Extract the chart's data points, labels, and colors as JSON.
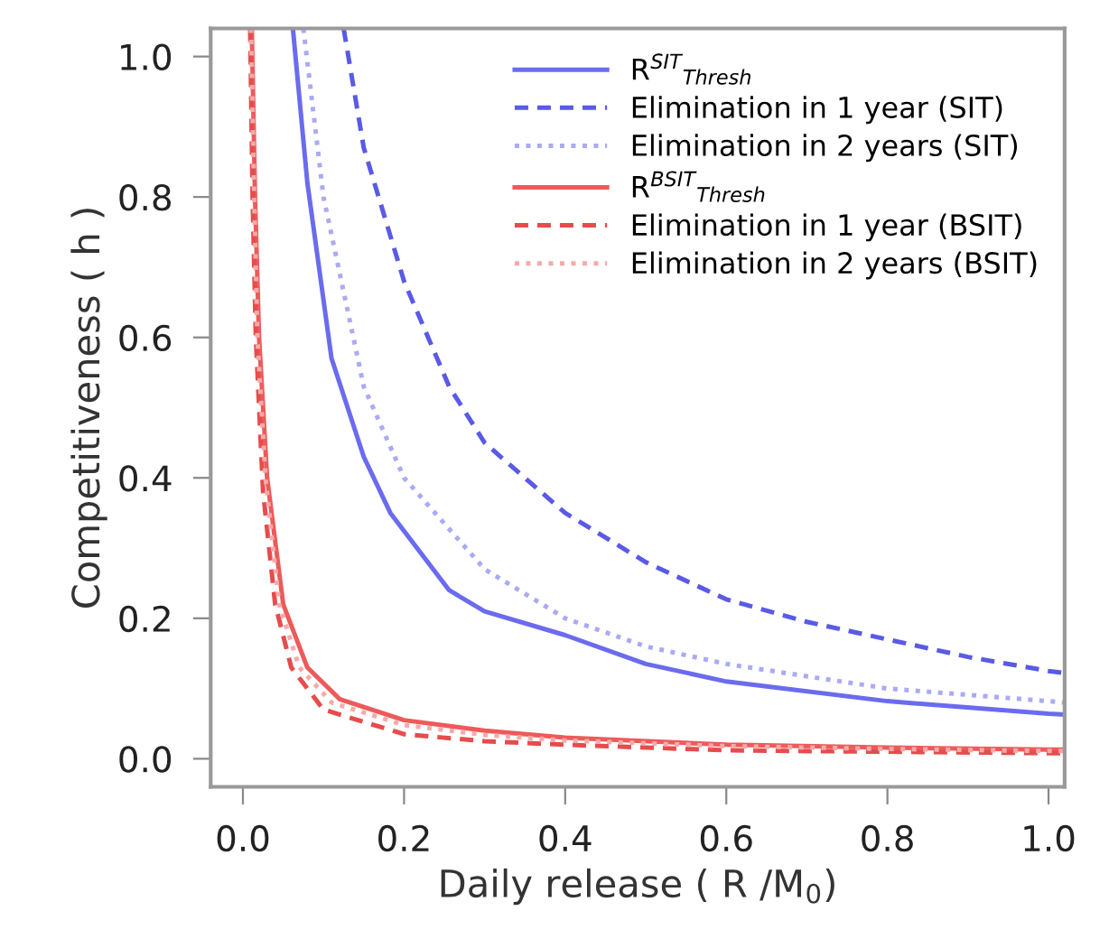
{
  "chart_data": {
    "type": "line",
    "xlabel": "Daily release ( R /M$_{0}$)",
    "ylabel": "Competitiveness ( h )",
    "xlim": [
      -0.04,
      1.02
    ],
    "ylim": [
      -0.04,
      1.04
    ],
    "xticks": [
      {
        "value": 0,
        "label": "0.0"
      },
      {
        "value": 0.2,
        "label": "0.2"
      },
      {
        "value": 0.4,
        "label": "0.4"
      },
      {
        "value": 0.6,
        "label": "0.6"
      },
      {
        "value": 0.8,
        "label": "0.8"
      },
      {
        "value": 1.0,
        "label": "1.0"
      }
    ],
    "yticks": [
      {
        "value": 0,
        "label": "0.0"
      },
      {
        "value": 0.2,
        "label": "0.2"
      },
      {
        "value": 0.4,
        "label": "0.4"
      },
      {
        "value": 0.6,
        "label": "0.6"
      },
      {
        "value": 0.8,
        "label": "0.8"
      },
      {
        "value": 1.0,
        "label": "1.0"
      }
    ],
    "grid": false,
    "legend": "top right",
    "series": [
      {
        "name": "R$^{SIT}$$_{Thresh}$",
        "color": "#6b6bef",
        "line_style": "solid",
        "x": [
          0.062,
          0.08,
          0.11,
          0.15,
          0.183,
          0.256,
          0.3,
          0.4,
          0.5,
          0.6,
          0.8,
          1.0,
          1.02
        ],
        "values": [
          1.04,
          0.82,
          0.57,
          0.43,
          0.35,
          0.24,
          0.21,
          0.176,
          0.135,
          0.11,
          0.082,
          0.064,
          0.063
        ]
      },
      {
        "name": "Elimination in 1 year (SIT)",
        "color": "#5a5ae6",
        "line_style": "dashed",
        "x": [
          0.125,
          0.15,
          0.2,
          0.256,
          0.3,
          0.4,
          0.5,
          0.6,
          0.7,
          0.8,
          0.9,
          1.0,
          1.02
        ],
        "values": [
          1.04,
          0.87,
          0.68,
          0.53,
          0.45,
          0.35,
          0.28,
          0.227,
          0.195,
          0.17,
          0.145,
          0.125,
          0.122
        ]
      },
      {
        "name": "Elimination in 2 years (SIT)",
        "color": "#aaaaf5",
        "line_style": "dotted",
        "x": [
          0.075,
          0.1,
          0.15,
          0.2,
          0.3,
          0.4,
          0.5,
          0.6,
          0.8,
          1.0,
          1.02
        ],
        "values": [
          1.04,
          0.8,
          0.53,
          0.4,
          0.27,
          0.2,
          0.16,
          0.135,
          0.1,
          0.082,
          0.08
        ]
      },
      {
        "name": "R$^{BSIT}$$_{Thresh}$",
        "color": "#ee5a5a",
        "line_style": "solid",
        "x": [
          0.011,
          0.015,
          0.02,
          0.03,
          0.05,
          0.08,
          0.12,
          0.2,
          0.3,
          0.4,
          0.6,
          0.8,
          1.0,
          1.02
        ],
        "values": [
          1.04,
          0.8,
          0.6,
          0.4,
          0.22,
          0.13,
          0.085,
          0.055,
          0.04,
          0.03,
          0.02,
          0.016,
          0.013,
          0.013
        ]
      },
      {
        "name": "Elimination in 1 year (BSIT)",
        "color": "#e64c4c",
        "line_style": "dashed",
        "x": [
          0.009,
          0.012,
          0.016,
          0.025,
          0.04,
          0.06,
          0.1,
          0.2,
          0.3,
          0.4,
          0.6,
          1.0,
          1.02
        ],
        "values": [
          1.04,
          0.8,
          0.6,
          0.38,
          0.22,
          0.13,
          0.07,
          0.035,
          0.025,
          0.02,
          0.012,
          0.008,
          0.008
        ]
      },
      {
        "name": "Elimination in 2 years (BSIT)",
        "color": "#f5aaaa",
        "line_style": "dotted",
        "x": [
          0.01,
          0.014,
          0.018,
          0.028,
          0.045,
          0.07,
          0.11,
          0.2,
          0.3,
          0.4,
          0.6,
          0.8,
          1.0,
          1.02
        ],
        "values": [
          1.04,
          0.8,
          0.6,
          0.4,
          0.22,
          0.13,
          0.08,
          0.048,
          0.034,
          0.026,
          0.018,
          0.014,
          0.011,
          0.011
        ]
      }
    ]
  }
}
